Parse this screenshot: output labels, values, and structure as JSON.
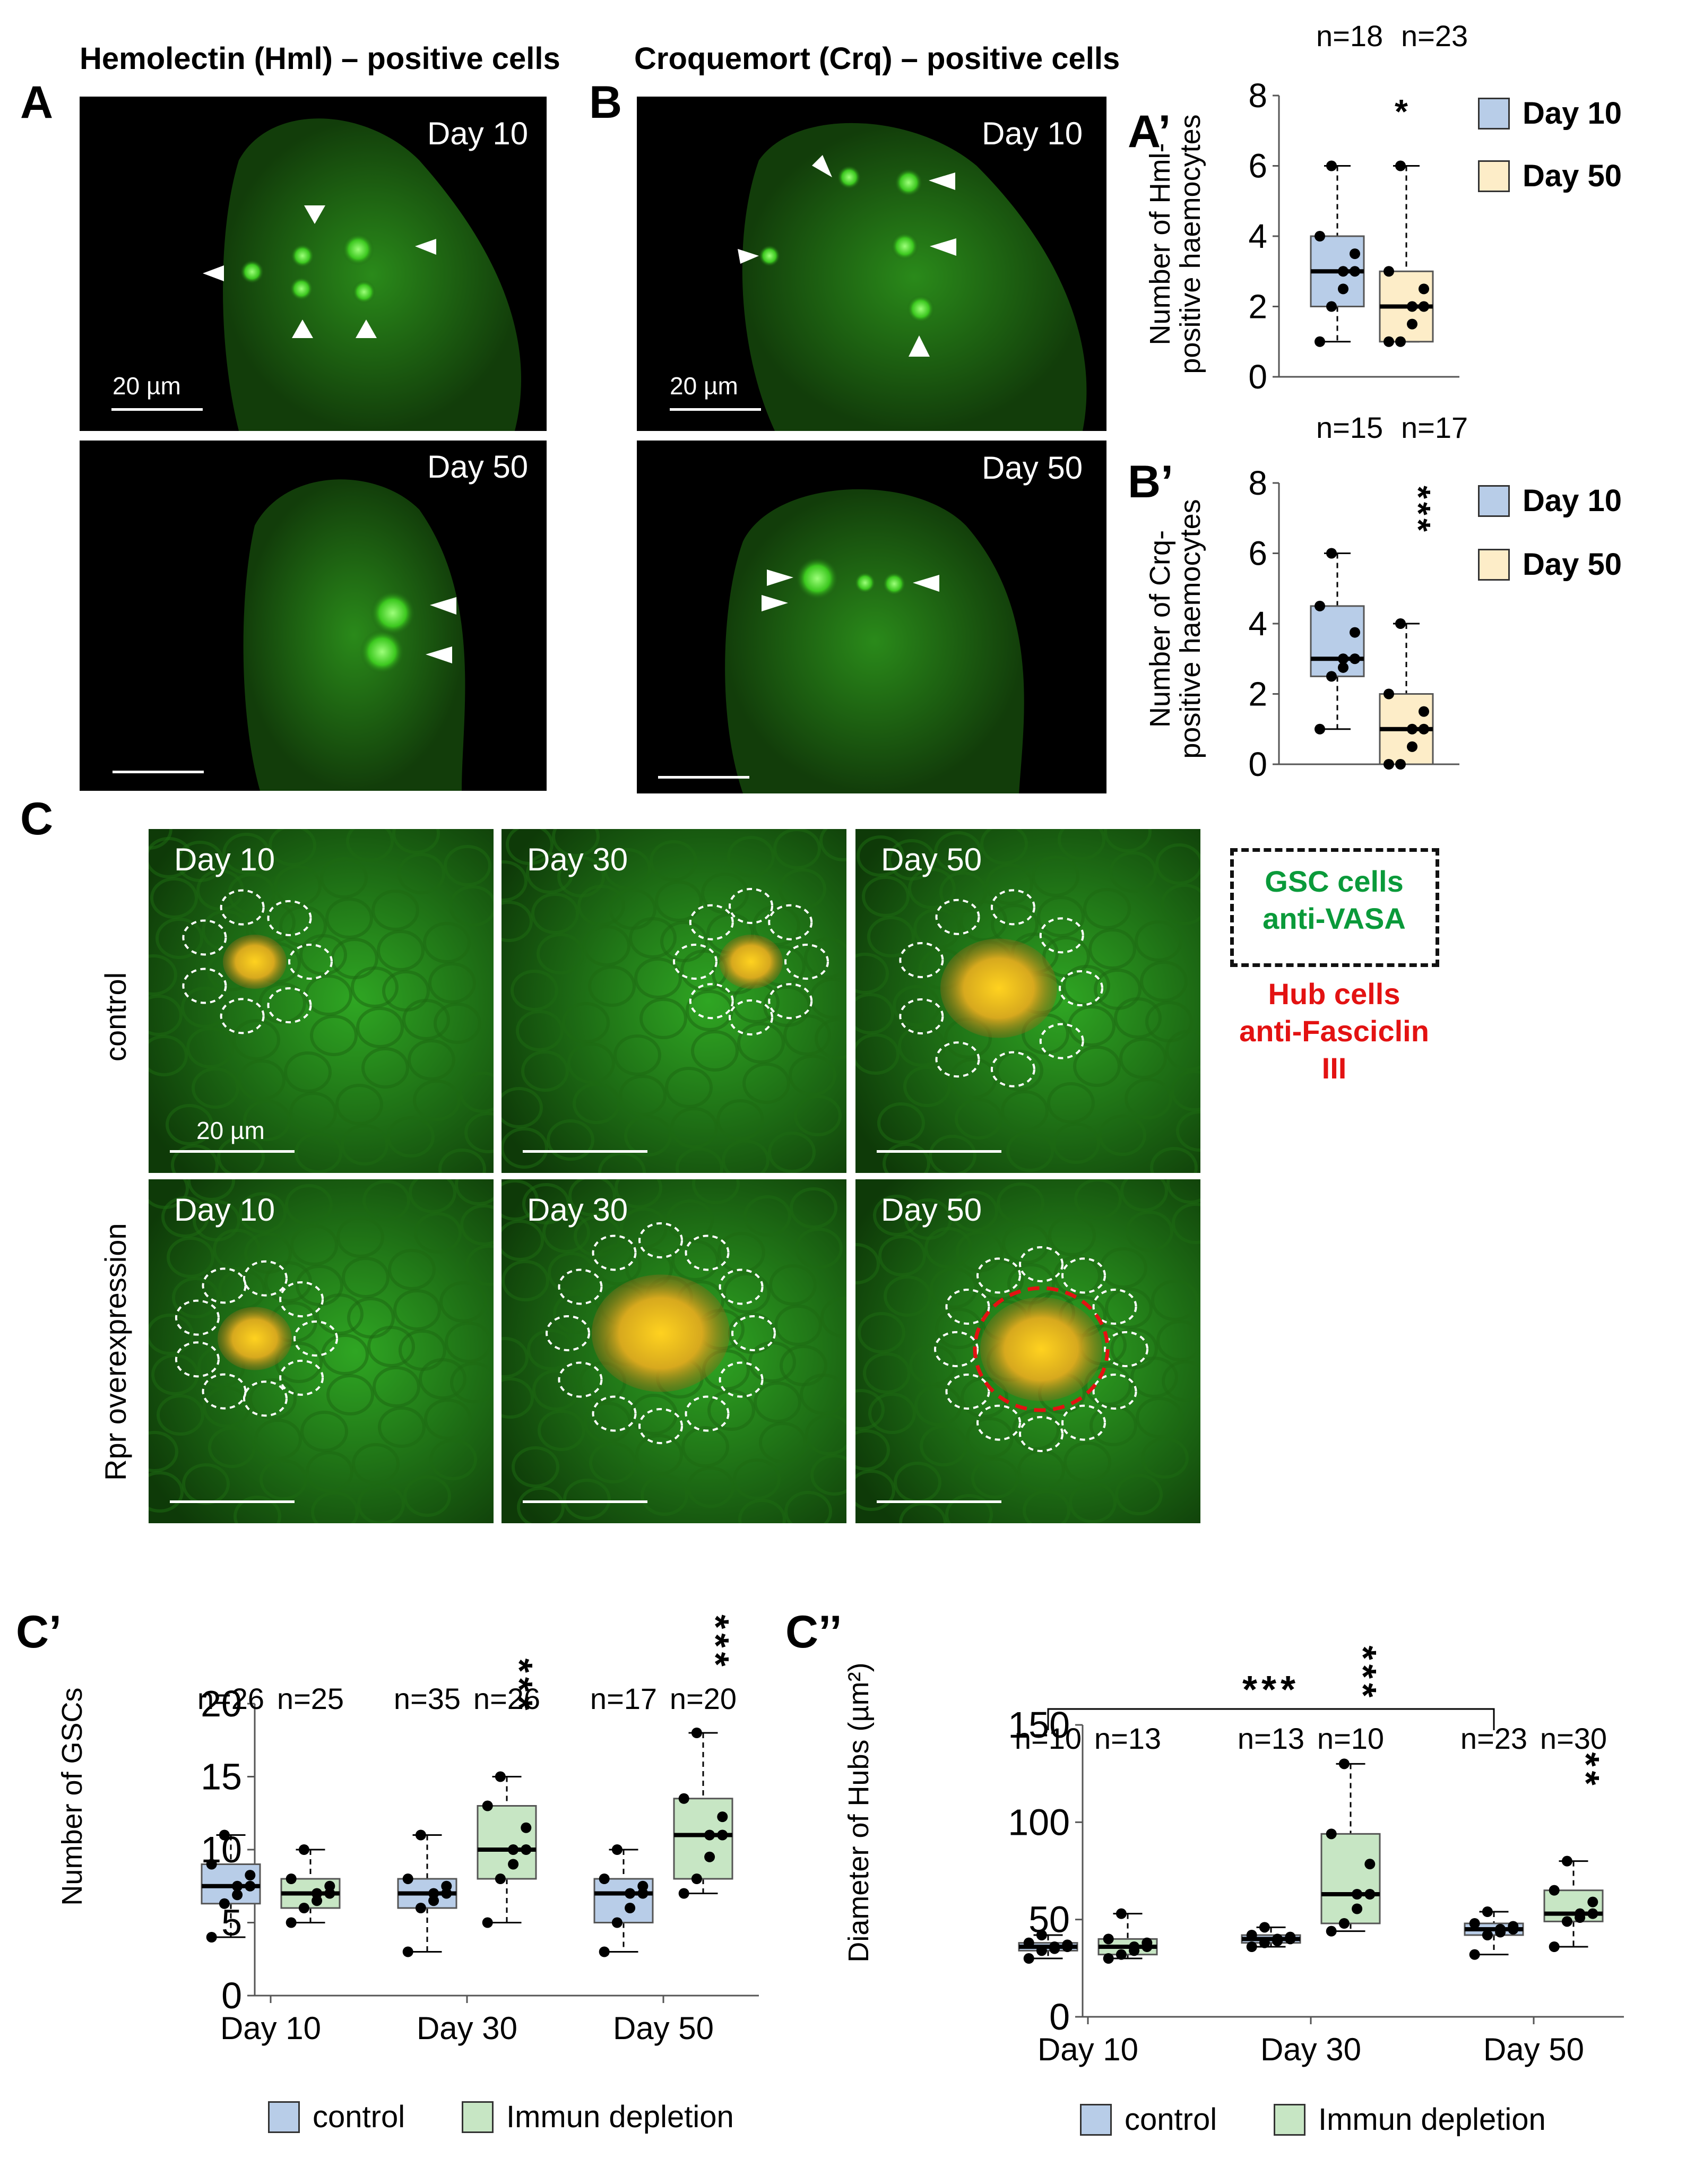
{
  "panels": {
    "A": {
      "label": "A",
      "title": "Hemolectin (Hml) – positive cells",
      "top_day": "Day 10",
      "bottom_day": "Day 50",
      "scale": "20 µm"
    },
    "B": {
      "label": "B",
      "title": "Croquemort (Crq) – positive cells",
      "top_day": "Day 10",
      "bottom_day": "Day 50",
      "scale": "20 µm"
    },
    "C": {
      "label": "C",
      "row1": "control",
      "row2": "Rpr overexpression",
      "days": [
        "Day 10",
        "Day 30",
        "Day 50"
      ],
      "scale": "20 µm",
      "legend": {
        "gsc1": "GSC cells",
        "gsc2": "anti-VASA",
        "hub1": "Hub cells",
        "hub2": "anti-Fasciclin III"
      },
      "colors": {
        "gsc": "#0a9a3a",
        "hub": "#e31212"
      }
    }
  },
  "chart_data": [
    {
      "id": "A'",
      "label": "A’",
      "type": "box",
      "ylabel1": "Number of Hml-",
      "ylabel2": "positive haemocytes",
      "ylim": [
        0,
        8
      ],
      "yticks": [
        "0",
        "2",
        "4",
        "6",
        "8"
      ],
      "series": [
        {
          "name": "Day 10",
          "color": "#b8cde8",
          "n": "n=18",
          "min": 1,
          "q1": 2,
          "median": 3,
          "q3": 4,
          "max": 6
        },
        {
          "name": "Day 50",
          "color": "#fdedc8",
          "n": "n=23",
          "min": 1,
          "q1": 1,
          "median": 2,
          "q3": 3,
          "max": 6
        }
      ],
      "significance": "*"
    },
    {
      "id": "B'",
      "label": "B’",
      "type": "box",
      "ylabel1": "Number of Crq-",
      "ylabel2": "positive haemocytes",
      "ylim": [
        0,
        8
      ],
      "yticks": [
        "0",
        "2",
        "4",
        "6",
        "8"
      ],
      "series": [
        {
          "name": "Day 10",
          "color": "#b8cde8",
          "n": "n=15",
          "min": 1,
          "q1": 2.5,
          "median": 3,
          "q3": 4.5,
          "max": 6
        },
        {
          "name": "Day 50",
          "color": "#fdedc8",
          "n": "n=17",
          "min": 0,
          "q1": 0,
          "median": 1,
          "q3": 2,
          "max": 4
        }
      ],
      "significance": "***"
    },
    {
      "id": "C'",
      "label": "C’",
      "type": "box",
      "ylabel": "Number of GSCs",
      "ylim": [
        0,
        20
      ],
      "yticks": [
        "0",
        "5",
        "10",
        "15",
        "20"
      ],
      "categories": [
        "Day 10",
        "Day 30",
        "Day 50"
      ],
      "series": [
        {
          "name": "control",
          "color": "#b8cde8",
          "n": [
            "n=26",
            "n=35",
            "n=17"
          ],
          "boxes": [
            {
              "min": 4,
              "q1": 6.3,
              "median": 7.5,
              "q3": 9,
              "max": 11
            },
            {
              "min": 3,
              "q1": 6,
              "median": 7,
              "q3": 8,
              "max": 11
            },
            {
              "min": 3,
              "q1": 5,
              "median": 7,
              "q3": 8,
              "max": 10
            }
          ]
        },
        {
          "name": "Immun depletion",
          "color": "#c7e6c4",
          "n": [
            "n=25",
            "n=26",
            "n=20"
          ],
          "boxes": [
            {
              "min": 5,
              "q1": 6,
              "median": 7,
              "q3": 8,
              "max": 10
            },
            {
              "min": 5,
              "q1": 8,
              "median": 10,
              "q3": 13,
              "max": 15
            },
            {
              "min": 7,
              "q1": 8,
              "median": 11,
              "q3": 13.5,
              "max": 18
            }
          ]
        }
      ],
      "significance": [
        "",
        "***",
        "***"
      ]
    },
    {
      "id": "C''",
      "label": "C’’",
      "type": "box",
      "ylabel": "Diameter of Hubs (µm²)",
      "ylim": [
        0,
        150
      ],
      "yticks": [
        "0",
        "50",
        "100",
        "150"
      ],
      "categories": [
        "Day 10",
        "Day 30",
        "Day 50"
      ],
      "series": [
        {
          "name": "control",
          "color": "#b8cde8",
          "n": [
            "n=10",
            "n=13",
            "n=23"
          ],
          "boxes": [
            {
              "min": 30,
              "q1": 34,
              "median": 36,
              "q3": 38,
              "max": 42
            },
            {
              "min": 36,
              "q1": 38,
              "median": 40,
              "q3": 42,
              "max": 46
            },
            {
              "min": 32,
              "q1": 42,
              "median": 45,
              "q3": 48,
              "max": 54
            }
          ]
        },
        {
          "name": "Immun depletion",
          "color": "#c7e6c4",
          "n": [
            "n=13",
            "n=10",
            "n=30"
          ],
          "boxes": [
            {
              "min": 30,
              "q1": 32,
              "median": 36,
              "q3": 40,
              "max": 53
            },
            {
              "min": 44,
              "q1": 48,
              "median": 63,
              "q3": 94,
              "max": 130
            },
            {
              "min": 36,
              "q1": 49,
              "median": 53,
              "q3": 65,
              "max": 80
            }
          ]
        }
      ],
      "significance": [
        "",
        "***",
        "**"
      ],
      "bracket": "***"
    }
  ]
}
